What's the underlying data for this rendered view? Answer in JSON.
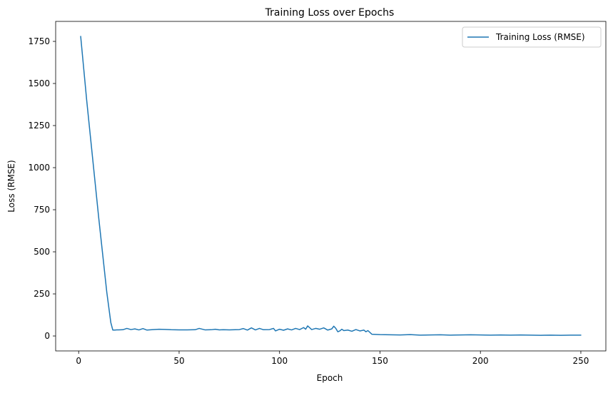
{
  "chart_data": {
    "type": "line",
    "title": "Training Loss over Epochs",
    "xlabel": "Epoch",
    "ylabel": "Loss (RMSE)",
    "xlim": [
      -11.45,
      262.45
    ],
    "ylim": [
      -88.8,
      1868.8
    ],
    "x_ticks": [
      0,
      50,
      100,
      150,
      200,
      250
    ],
    "y_ticks": [
      0,
      250,
      500,
      750,
      1000,
      1250,
      1500,
      1750
    ],
    "grid": false,
    "legend": {
      "position": "top-right"
    },
    "series": [
      {
        "name": "Training Loss (RMSE)",
        "color": "#1f77b4",
        "x": [
          1,
          4,
          7,
          10,
          12,
          14,
          16,
          17,
          18,
          19,
          20,
          22,
          24,
          26,
          28,
          30,
          32,
          34,
          37,
          40,
          43,
          46,
          50,
          54,
          58,
          60,
          63,
          66,
          68,
          70,
          72,
          75,
          78,
          80,
          82,
          84,
          86,
          88,
          90,
          92,
          95,
          97,
          98,
          100,
          102,
          104,
          106,
          108,
          110,
          112,
          113,
          114,
          116,
          118,
          120,
          122,
          124,
          126,
          127,
          128,
          129,
          130,
          131,
          132,
          134,
          136,
          138,
          140,
          142,
          143,
          144,
          146,
          150,
          155,
          160,
          165,
          170,
          175,
          180,
          185,
          190,
          195,
          200,
          205,
          210,
          215,
          220,
          225,
          230,
          235,
          240,
          245,
          250
        ],
        "y": [
          1780,
          1400,
          1050,
          700,
          480,
          260,
          80,
          35,
          35,
          36,
          36,
          37,
          45,
          38,
          42,
          36,
          44,
          35,
          38,
          40,
          39,
          37,
          36,
          36,
          37,
          45,
          36,
          37,
          40,
          36,
          37,
          36,
          37,
          38,
          44,
          35,
          48,
          36,
          45,
          37,
          38,
          45,
          30,
          40,
          34,
          42,
          36,
          45,
          38,
          50,
          40,
          60,
          38,
          45,
          40,
          48,
          35,
          42,
          58,
          45,
          25,
          30,
          40,
          32,
          35,
          28,
          38,
          30,
          35,
          25,
          32,
          10,
          8,
          7,
          6,
          8,
          5,
          6,
          7,
          5,
          6,
          7,
          6,
          5,
          6,
          5,
          6,
          5,
          4,
          5,
          4,
          5,
          5
        ]
      }
    ]
  }
}
